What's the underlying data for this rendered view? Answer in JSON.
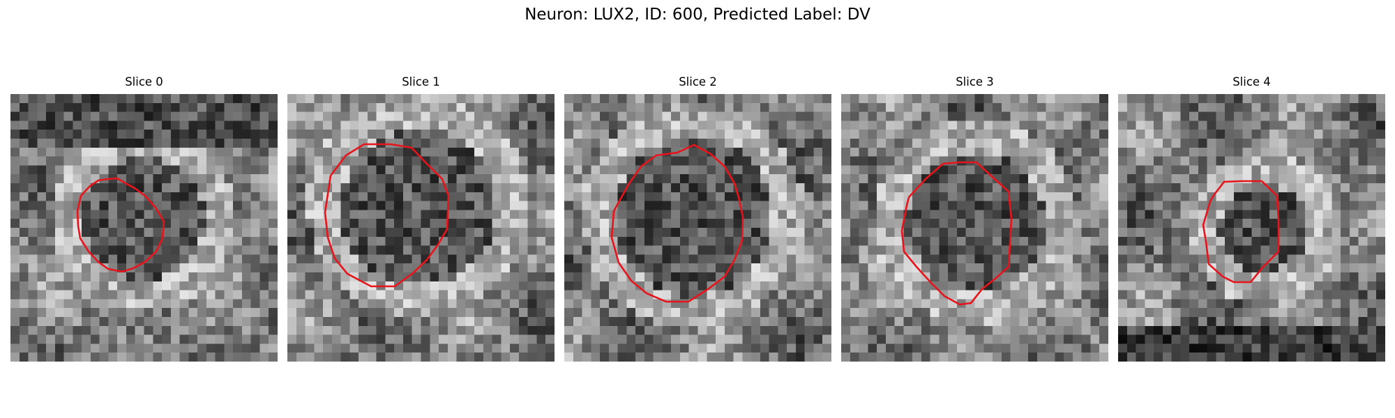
{
  "title": "Neuron: LUX2, ID: 600, Predicted Label: DV",
  "contour_color": "#e8141c",
  "slices": [
    {
      "label": "Slice 0"
    },
    {
      "label": "Slice 1"
    },
    {
      "label": "Slice 2"
    },
    {
      "label": "Slice 3"
    },
    {
      "label": "Slice 4"
    }
  ]
}
